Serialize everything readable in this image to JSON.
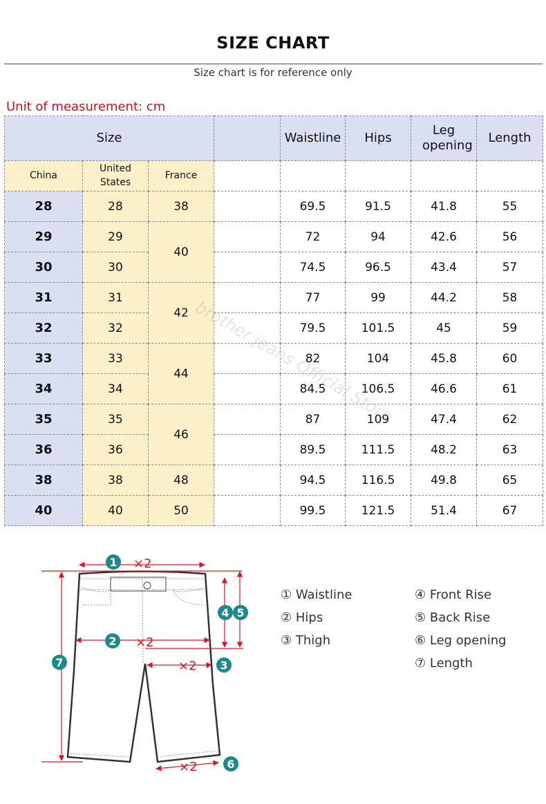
{
  "title": "SIZE CHART",
  "subtitle": "Size chart is for reference only",
  "unit": "Unit of measurement: cm",
  "watermark": "brother jeans Official Store",
  "table": {
    "header": {
      "size": "Size",
      "blank": "",
      "waistline": "Waistline",
      "hips": "Hips",
      "leg_opening": "Leg opening",
      "length": "Length"
    },
    "subheader": {
      "china": "China",
      "us": "United States",
      "france": "France"
    },
    "rows": [
      {
        "china": "28",
        "us": "28",
        "france": "38",
        "waistline": "69.5",
        "hips": "91.5",
        "leg": "41.8",
        "length": "55"
      },
      {
        "china": "29",
        "us": "29",
        "france": "40",
        "waistline": "72",
        "hips": "94",
        "leg": "42.6",
        "length": "56"
      },
      {
        "china": "30",
        "us": "30",
        "france": "40",
        "waistline": "74.5",
        "hips": "96.5",
        "leg": "43.4",
        "length": "57"
      },
      {
        "china": "31",
        "us": "31",
        "france": "42",
        "waistline": "77",
        "hips": "99",
        "leg": "44.2",
        "length": "58"
      },
      {
        "china": "32",
        "us": "32",
        "france": "42",
        "waistline": "79.5",
        "hips": "101.5",
        "leg": "45",
        "length": "59"
      },
      {
        "china": "33",
        "us": "33",
        "france": "44",
        "waistline": "82",
        "hips": "104",
        "leg": "45.8",
        "length": "60"
      },
      {
        "china": "34",
        "us": "34",
        "france": "44",
        "waistline": "84.5",
        "hips": "106.5",
        "leg": "46.6",
        "length": "61"
      },
      {
        "china": "35",
        "us": "35",
        "france": "46",
        "waistline": "87",
        "hips": "109",
        "leg": "47.4",
        "length": "62"
      },
      {
        "china": "36",
        "us": "36",
        "france": "46",
        "waistline": "89.5",
        "hips": "111.5",
        "leg": "48.2",
        "length": "63"
      },
      {
        "china": "38",
        "us": "38",
        "france": "48",
        "waistline": "94.5",
        "hips": "116.5",
        "leg": "49.8",
        "length": "65"
      },
      {
        "china": "40",
        "us": "40",
        "france": "50",
        "waistline": "99.5",
        "hips": "121.5",
        "leg": "51.4",
        "length": "67"
      }
    ]
  },
  "diagram": {
    "times2": "×2",
    "markers": [
      "1",
      "2",
      "3",
      "4",
      "5",
      "6",
      "7"
    ],
    "marker_color": "#1a8a8a",
    "arrow_color": "#e0141e"
  },
  "legend": {
    "left": [
      "① Waistline",
      "② Hips",
      "③ Thigh"
    ],
    "right": [
      "④ Front Rise",
      "⑤ Back Rise",
      "⑥ Leg opening",
      "⑦ Length"
    ]
  }
}
